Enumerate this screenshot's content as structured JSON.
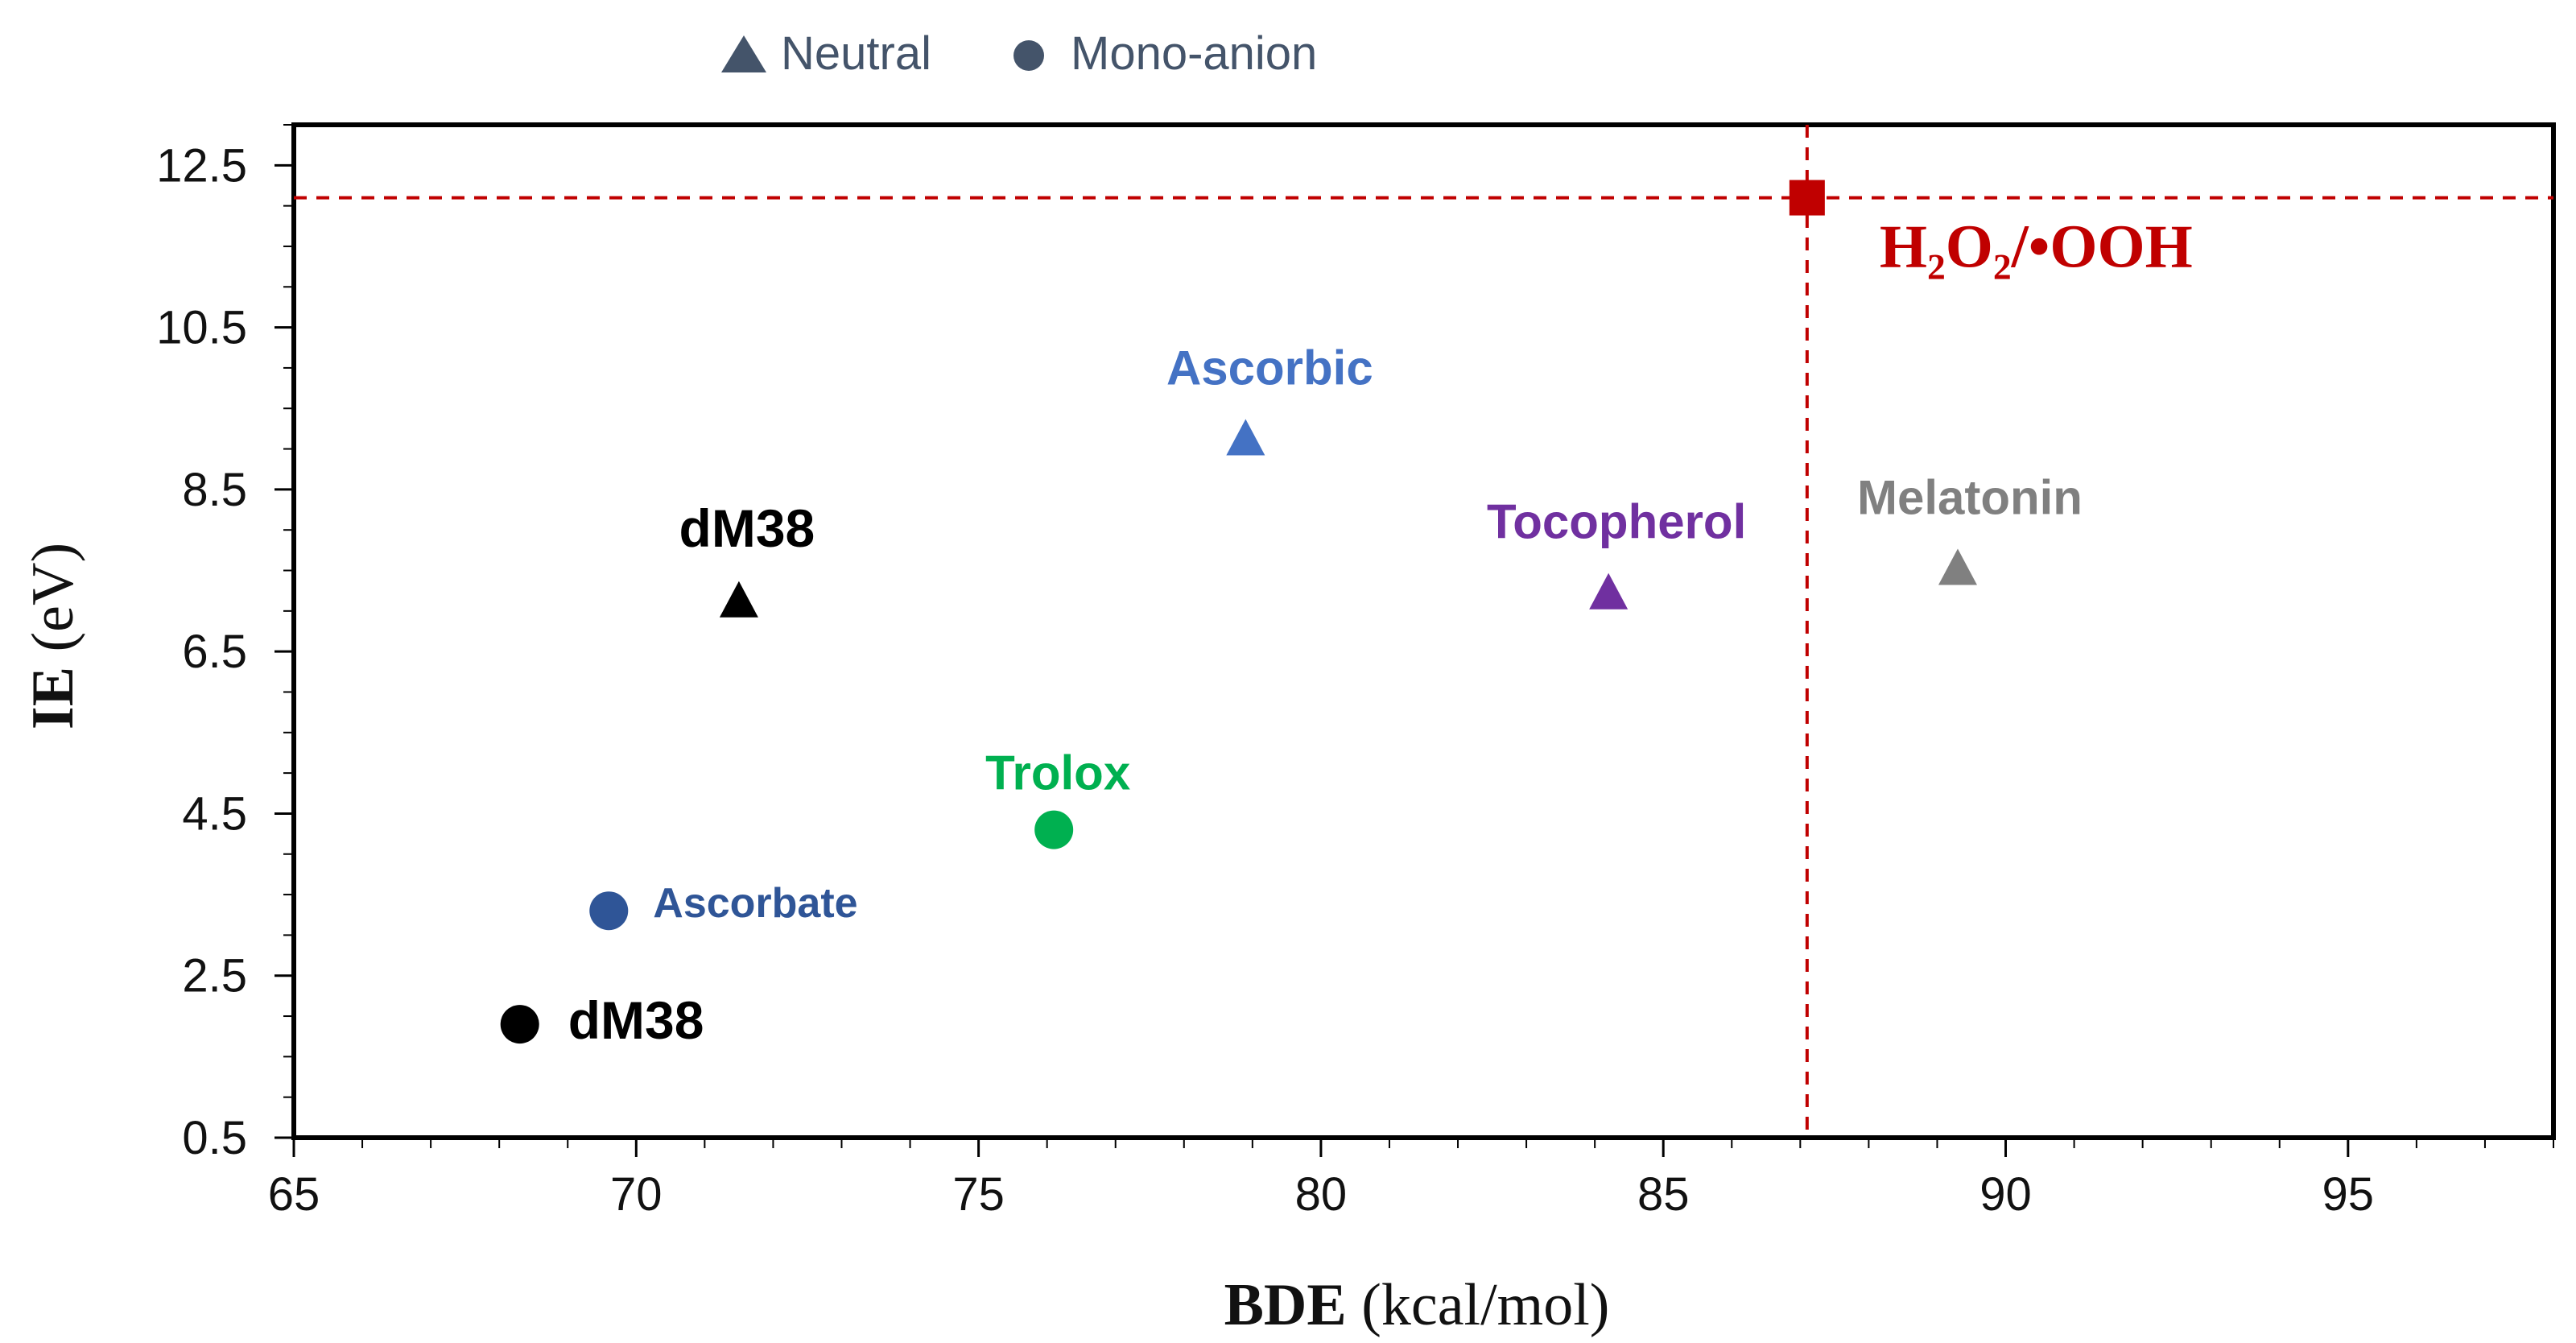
{
  "chart_data": {
    "type": "scatter",
    "xlabel": {
      "bold": "BDE",
      "rest": " (kcal/mol)"
    },
    "ylabel": {
      "bold": "IE",
      "rest": "  (eV)"
    },
    "xlim": [
      65,
      98
    ],
    "ylim": [
      0.5,
      13.0
    ],
    "xticks": [
      65,
      70,
      75,
      80,
      85,
      90,
      95
    ],
    "yticks": [
      0.5,
      2.5,
      4.5,
      6.5,
      8.5,
      10.5,
      12.5
    ],
    "ytick_labels": [
      "0.5",
      "2.5",
      "4.5",
      "6.5",
      "8.5",
      "10.5",
      "12.5"
    ],
    "legend": [
      {
        "label": "Neutral",
        "marker": "triangle",
        "color": "#44546a"
      },
      {
        "label": "Mono-anion",
        "marker": "circle",
        "color": "#44546a"
      }
    ],
    "points": [
      {
        "name": "dM38",
        "form": "neutral",
        "x": 71.5,
        "y": 7.1,
        "color": "#000000"
      },
      {
        "name": "Ascorbic",
        "form": "neutral",
        "x": 78.9,
        "y": 9.1,
        "color": "#4472c4"
      },
      {
        "name": "Tocopherol",
        "form": "neutral",
        "x": 84.2,
        "y": 7.2,
        "color": "#7030a0"
      },
      {
        "name": "Melatonin",
        "form": "neutral",
        "x": 89.3,
        "y": 7.5,
        "color": "#808080"
      },
      {
        "name": "Trolox",
        "form": "mono-anion",
        "x": 76.1,
        "y": 4.3,
        "color": "#00b050"
      },
      {
        "name": "Ascorbate",
        "form": "mono-anion",
        "x": 69.6,
        "y": 3.3,
        "color": "#2f5597"
      },
      {
        "name": "dM38",
        "form": "mono-anion",
        "x": 68.3,
        "y": 1.9,
        "color": "#000000"
      }
    ],
    "reference": {
      "label": "H₂O₂/•OOH",
      "x": 87.1,
      "y": 12.1,
      "color": "#c00000"
    }
  }
}
